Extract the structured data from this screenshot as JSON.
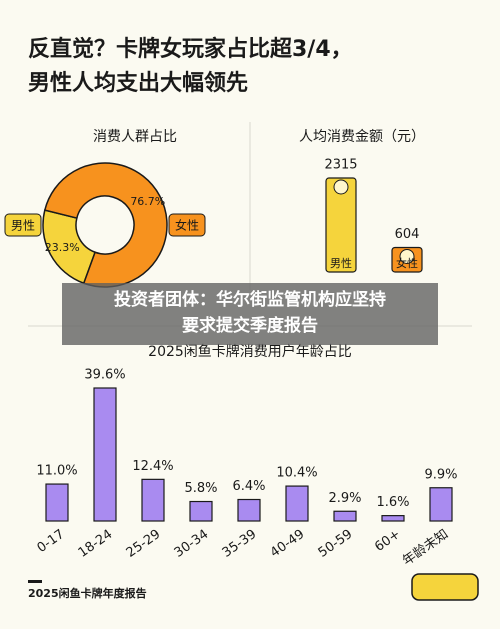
{
  "title": [
    "反直觉？卡牌女玩家占比超3/4，",
    "男性人均支出大幅领先"
  ],
  "chart_data": [
    {
      "type": "pie",
      "title": "消费人群占比",
      "categories": [
        "男性",
        "女性"
      ],
      "values": [
        23.3,
        76.7
      ],
      "value_labels": [
        "23.3%",
        "76.7%"
      ],
      "colors": [
        "#f5d43c",
        "#f7921e"
      ]
    },
    {
      "type": "bar",
      "title": "人均消费金额（元）",
      "categories": [
        "男性",
        "女性"
      ],
      "values": [
        2315,
        604
      ],
      "colors": [
        "#f5d43c",
        "#f7921e"
      ]
    },
    {
      "type": "bar",
      "title": "2025闲鱼卡牌消费用户年龄占比",
      "categories": [
        "0-17",
        "18-24",
        "25-29",
        "30-34",
        "35-39",
        "40-49",
        "50-59",
        "60+",
        "年龄未知"
      ],
      "values": [
        11.0,
        39.6,
        12.4,
        5.8,
        6.4,
        10.4,
        2.9,
        1.6,
        9.9
      ],
      "value_labels": [
        "11.0%",
        "39.6%",
        "12.4%",
        "5.8%",
        "6.4%",
        "10.4%",
        "2.9%",
        "1.6%",
        "9.9%"
      ],
      "colors": [
        "#a98bf0"
      ]
    }
  ],
  "overlay_text": [
    "投资者团体：华尔街监管机构应坚持",
    "要求提交季度报告"
  ],
  "footer": "2025闲鱼卡牌年度报告"
}
